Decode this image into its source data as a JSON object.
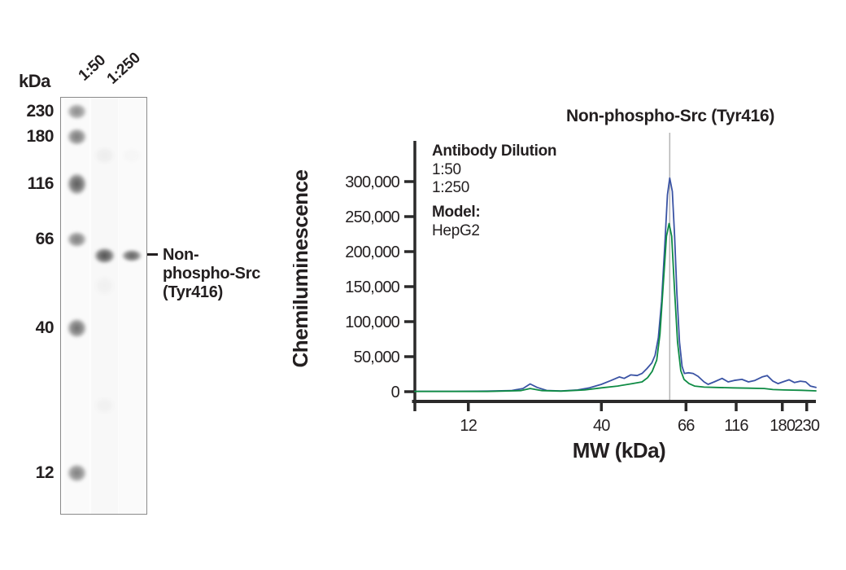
{
  "figure_title": "Non-phospho-Src (Tyr416)",
  "blot": {
    "unit_label": "kDa",
    "marker_labels": [
      "230",
      "180",
      "116",
      "66",
      "40",
      "12"
    ],
    "lane_labels": [
      "1:50",
      "1:250"
    ],
    "band_annotation_lines": [
      "Non-",
      "phospho-Src",
      "(Tyr416)"
    ]
  },
  "chart_data": {
    "type": "line",
    "title": "Non-phospho-Src (Tyr416)",
    "xlabel": "MW (kDa)",
    "ylabel": "Chemiluminescence",
    "legend": {
      "title": "Antibody Dilution",
      "entries": [
        {
          "label": "1:50",
          "color": "#3a53a4"
        },
        {
          "label": "1:250",
          "color": "#0e8b44"
        }
      ],
      "model_label": "Model:",
      "model_value": "HepG2",
      "position": "upper-left-inside"
    },
    "x_axis": {
      "scale": "nonlinear-migration",
      "ticks": [
        12,
        40,
        66,
        116,
        180,
        230
      ],
      "tick_labels": [
        "12",
        "40",
        "66",
        "116",
        "180",
        "230"
      ],
      "range_kda": [
        6,
        250
      ],
      "scale_anchors": [
        {
          "kda": 6,
          "pos": 0.0
        },
        {
          "kda": 12,
          "pos": 0.1333
        },
        {
          "kda": 40,
          "pos": 0.4651
        },
        {
          "kda": 66,
          "pos": 0.6761
        },
        {
          "kda": 116,
          "pos": 0.8012
        },
        {
          "kda": 180,
          "pos": 0.9162
        },
        {
          "kda": 230,
          "pos": 0.9771
        },
        {
          "kda": 250,
          "pos": 1.0
        }
      ]
    },
    "y_axis": {
      "ticks": [
        0,
        50000,
        100000,
        150000,
        200000,
        250000,
        300000
      ],
      "tick_labels": [
        "0",
        "50,000",
        "100,000",
        "150,000",
        "200,000",
        "250,000",
        "300,000"
      ],
      "range": [
        0,
        358000
      ],
      "grid": false
    },
    "reference_line_kda": 61,
    "reference_line_color": "#b5b5b5",
    "series": [
      {
        "name": "1:50",
        "color": "#3a53a4",
        "peak": {
          "kda": 61,
          "value": 305000
        },
        "points": [
          [
            6,
            500
          ],
          [
            10.5,
            500
          ],
          [
            16,
            800
          ],
          [
            21,
            1500
          ],
          [
            23.5,
            4500
          ],
          [
            25,
            11000
          ],
          [
            26.5,
            6000
          ],
          [
            28.5,
            1800
          ],
          [
            31.5,
            1000
          ],
          [
            35,
            2500
          ],
          [
            37.5,
            5500
          ],
          [
            40,
            10500
          ],
          [
            43,
            16000
          ],
          [
            45.5,
            21000
          ],
          [
            47,
            19000
          ],
          [
            49,
            24000
          ],
          [
            51,
            23000
          ],
          [
            52.5,
            26000
          ],
          [
            54,
            33000
          ],
          [
            55.5,
            41000
          ],
          [
            56.5,
            52000
          ],
          [
            57.5,
            77000
          ],
          [
            58.5,
            129000
          ],
          [
            59.5,
            210000
          ],
          [
            60.3,
            281000
          ],
          [
            61,
            305000
          ],
          [
            61.8,
            286000
          ],
          [
            62.5,
            222000
          ],
          [
            63.2,
            141000
          ],
          [
            64,
            71000
          ],
          [
            64.8,
            36000
          ],
          [
            65.5,
            26000
          ],
          [
            68.5,
            27000
          ],
          [
            73,
            26000
          ],
          [
            78,
            22000
          ],
          [
            84,
            14000
          ],
          [
            88,
            10500
          ],
          [
            94,
            14000
          ],
          [
            102,
            19000
          ],
          [
            108,
            14000
          ],
          [
            114,
            16000
          ],
          [
            124,
            17500
          ],
          [
            133,
            14000
          ],
          [
            142,
            16000
          ],
          [
            152,
            21000
          ],
          [
            159,
            23000
          ],
          [
            167,
            15000
          ],
          [
            174,
            11500
          ],
          [
            181,
            14000
          ],
          [
            194,
            17000
          ],
          [
            205,
            13000
          ],
          [
            217,
            15000
          ],
          [
            228,
            14000
          ],
          [
            238,
            8000
          ],
          [
            250,
            6000
          ]
        ]
      },
      {
        "name": "1:250",
        "color": "#0e8b44",
        "peak": {
          "kda": 60.8,
          "value": 240000
        },
        "points": [
          [
            6,
            300
          ],
          [
            16,
            400
          ],
          [
            23,
            1500
          ],
          [
            25,
            4500
          ],
          [
            27.5,
            1500
          ],
          [
            31.5,
            800
          ],
          [
            36.5,
            2500
          ],
          [
            40,
            5500
          ],
          [
            45,
            8000
          ],
          [
            49.5,
            11500
          ],
          [
            52.5,
            14000
          ],
          [
            54.2,
            20000
          ],
          [
            55.6,
            29000
          ],
          [
            57,
            45000
          ],
          [
            58,
            82000
          ],
          [
            59,
            152000
          ],
          [
            60,
            222000
          ],
          [
            60.8,
            240000
          ],
          [
            61.6,
            222000
          ],
          [
            62.4,
            152000
          ],
          [
            63.4,
            71000
          ],
          [
            64.4,
            30000
          ],
          [
            65.4,
            17500
          ],
          [
            69,
            11500
          ],
          [
            74.5,
            8000
          ],
          [
            84,
            6500
          ],
          [
            96,
            6000
          ],
          [
            112,
            5500
          ],
          [
            133,
            5000
          ],
          [
            155,
            4500
          ],
          [
            167,
            3000
          ],
          [
            183,
            2500
          ],
          [
            219,
            2000
          ],
          [
            250,
            1200
          ]
        ]
      }
    ]
  }
}
